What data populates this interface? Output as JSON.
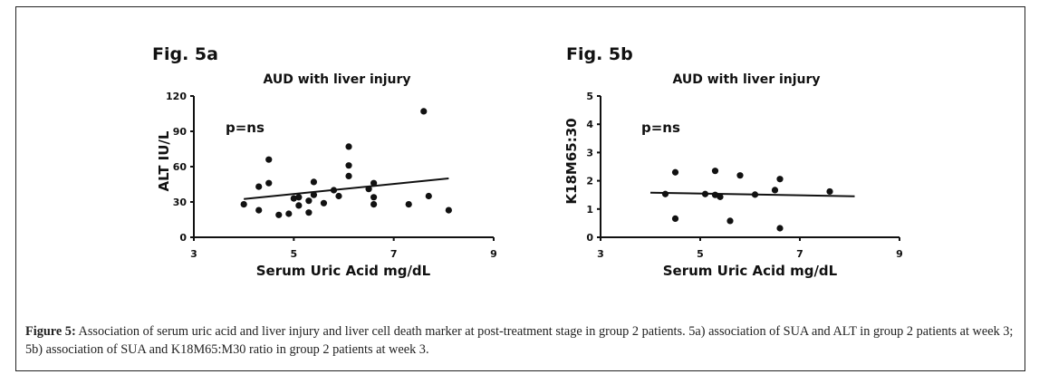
{
  "figure": {
    "caption_label": "Figure 5:",
    "caption_text": " Association of serum uric acid and liver injury and liver cell death marker at post-treatment stage in group 2 patients. 5a) association of SUA and ALT in group 2 patients at week 3; 5b) association of SUA and K18M65:M30 ratio in group 2 patients at week 3."
  },
  "chart_data": [
    {
      "type": "scatter",
      "panel_label": "Fig. 5a",
      "title": "AUD with liver injury",
      "xlabel": "Serum Uric Acid mg/dL",
      "ylabel": "ALT IU/L",
      "xlim": [
        3,
        9
      ],
      "ylim": [
        0,
        120
      ],
      "xticks": [
        3,
        5,
        7,
        9
      ],
      "yticks": [
        0,
        30,
        60,
        90,
        120
      ],
      "grid": false,
      "annotation": "p=ns",
      "points": [
        {
          "x": 4.0,
          "y": 28
        },
        {
          "x": 4.3,
          "y": 23
        },
        {
          "x": 4.3,
          "y": 43
        },
        {
          "x": 4.5,
          "y": 66
        },
        {
          "x": 4.5,
          "y": 46
        },
        {
          "x": 4.7,
          "y": 19
        },
        {
          "x": 4.9,
          "y": 20
        },
        {
          "x": 5.0,
          "y": 33
        },
        {
          "x": 5.1,
          "y": 34
        },
        {
          "x": 5.1,
          "y": 27
        },
        {
          "x": 5.3,
          "y": 31
        },
        {
          "x": 5.3,
          "y": 21
        },
        {
          "x": 5.4,
          "y": 47
        },
        {
          "x": 5.4,
          "y": 36
        },
        {
          "x": 5.6,
          "y": 29
        },
        {
          "x": 5.8,
          "y": 40
        },
        {
          "x": 5.9,
          "y": 35
        },
        {
          "x": 6.1,
          "y": 77
        },
        {
          "x": 6.1,
          "y": 61
        },
        {
          "x": 6.1,
          "y": 52
        },
        {
          "x": 6.5,
          "y": 41
        },
        {
          "x": 6.6,
          "y": 46
        },
        {
          "x": 6.6,
          "y": 34
        },
        {
          "x": 6.6,
          "y": 28
        },
        {
          "x": 7.3,
          "y": 28
        },
        {
          "x": 7.6,
          "y": 107
        },
        {
          "x": 7.7,
          "y": 35
        },
        {
          "x": 8.1,
          "y": 23
        }
      ],
      "trendline": {
        "x": [
          4.0,
          8.1
        ],
        "y": [
          32.5,
          50
        ]
      }
    },
    {
      "type": "scatter",
      "panel_label": "Fig. 5b",
      "title": "AUD with liver injury",
      "xlabel": "Serum Uric Acid mg/dL",
      "ylabel": "K18M65:30",
      "xlim": [
        3,
        9
      ],
      "ylim": [
        0,
        5
      ],
      "xticks": [
        3,
        5,
        7,
        9
      ],
      "yticks": [
        0,
        1,
        2,
        3,
        4,
        5
      ],
      "grid": false,
      "annotation": "p=ns",
      "points": [
        {
          "x": 4.3,
          "y": 1.53
        },
        {
          "x": 4.5,
          "y": 2.3
        },
        {
          "x": 4.5,
          "y": 0.66
        },
        {
          "x": 5.1,
          "y": 1.53
        },
        {
          "x": 5.3,
          "y": 2.35
        },
        {
          "x": 5.3,
          "y": 1.5
        },
        {
          "x": 5.4,
          "y": 1.43
        },
        {
          "x": 5.6,
          "y": 0.58
        },
        {
          "x": 5.8,
          "y": 2.19
        },
        {
          "x": 6.1,
          "y": 1.51
        },
        {
          "x": 6.5,
          "y": 1.67
        },
        {
          "x": 6.6,
          "y": 2.06
        },
        {
          "x": 6.6,
          "y": 0.32
        },
        {
          "x": 7.6,
          "y": 1.62
        }
      ],
      "trendline": {
        "x": [
          4.0,
          8.1
        ],
        "y": [
          1.58,
          1.45
        ]
      }
    }
  ]
}
